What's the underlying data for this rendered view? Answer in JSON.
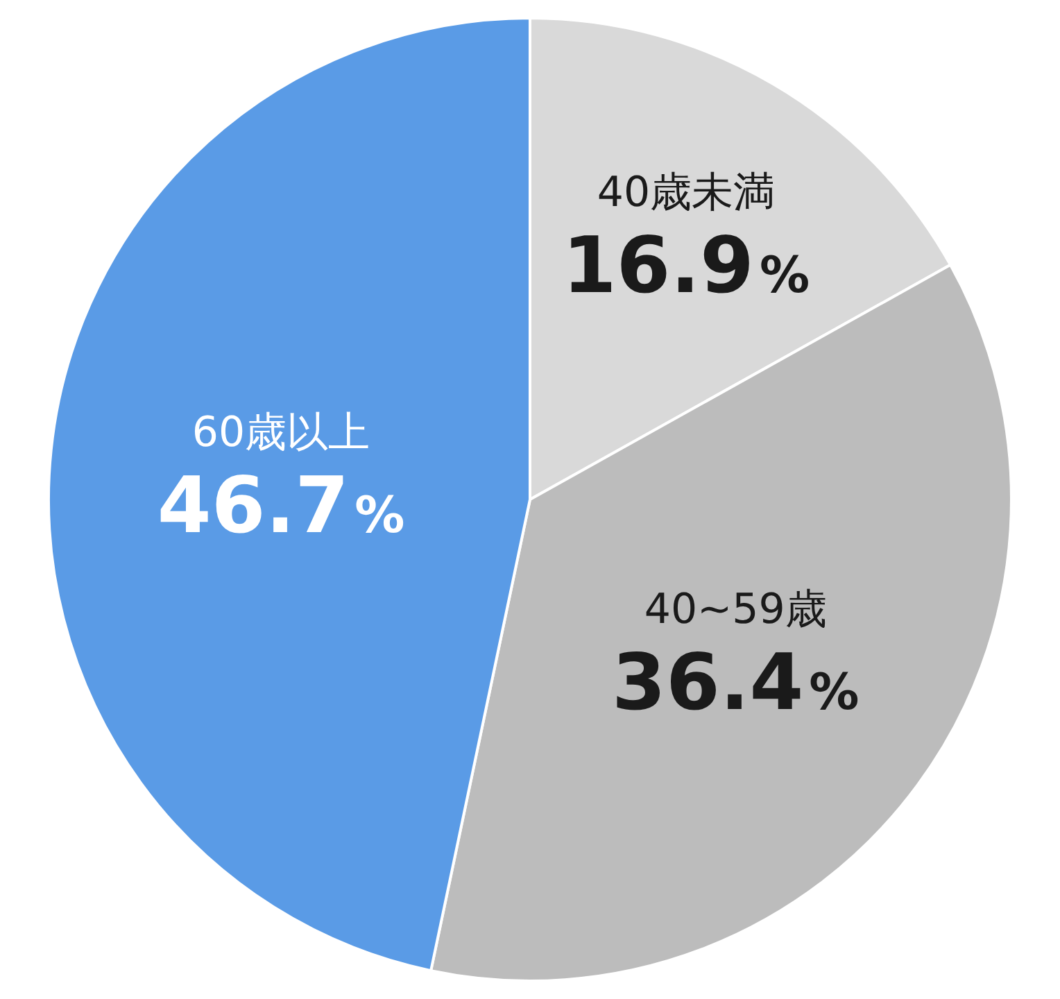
{
  "chart_data": {
    "type": "pie",
    "categories": [
      "40歳未満",
      "40~59歳",
      "60歳以上"
    ],
    "values": [
      16.9,
      36.4,
      46.7
    ],
    "colors": [
      "#d9d9d9",
      "#bcbcbc",
      "#5a9be6"
    ],
    "value_labels": [
      "16.9%",
      "36.4%",
      "46.7%"
    ],
    "legend": false
  }
}
